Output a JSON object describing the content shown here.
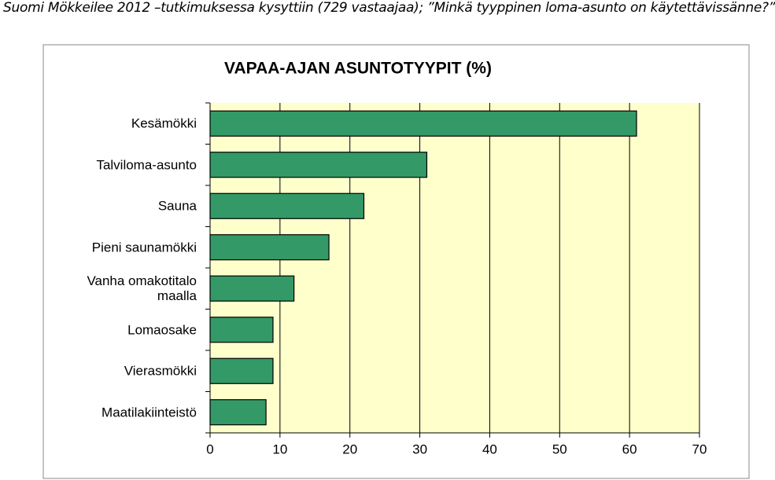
{
  "chart_data": {
    "type": "barh",
    "caption": "Suomi Mökkeilee 2012 –tutkimuksessa kysyttiin (729 vastaajaa); ”Minkä tyyppinen loma-asunto on käytettävissänne?”",
    "title": "VAPAA-AJAN ASUNTOTYYPIT (%)",
    "categories": [
      "Kesämökki",
      "Talviloma-asunto",
      "Sauna",
      "Pieni saunamökki",
      "Vanha omakotitalo maalla",
      "Lomaosake",
      "Vierasmökki",
      "Maatilakiinteistö"
    ],
    "values": [
      61,
      31,
      22,
      17,
      12,
      9,
      9,
      8
    ],
    "color": "#339966",
    "xlim": [
      0,
      70
    ],
    "xticks": [
      0,
      10,
      20,
      30,
      40,
      50,
      60,
      70
    ],
    "grid": true
  }
}
